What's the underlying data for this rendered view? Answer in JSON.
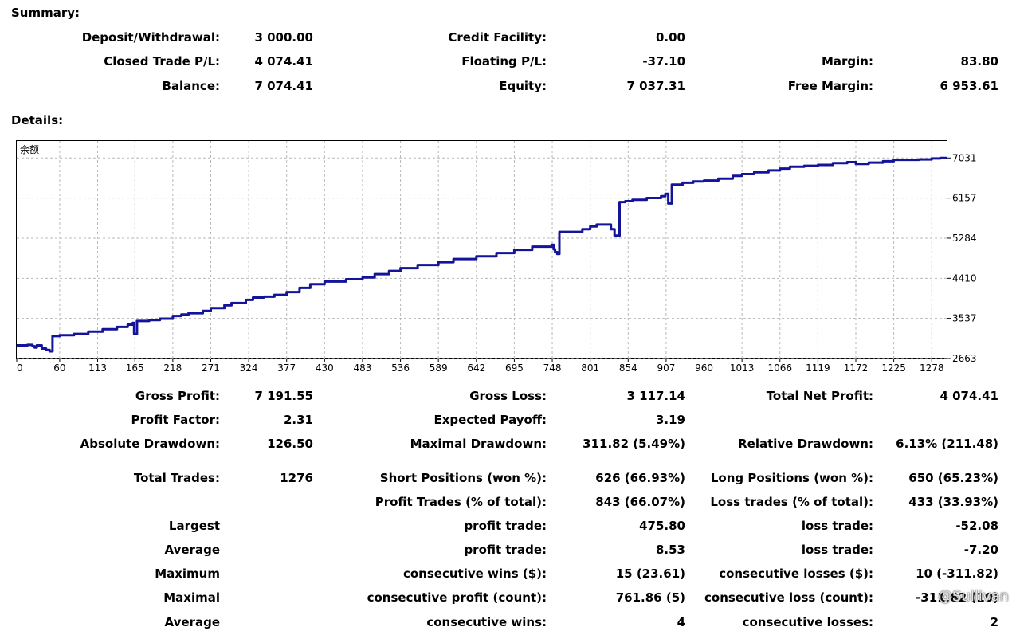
{
  "summary": {
    "title": "Summary:",
    "deposit_label": "Deposit/Withdrawal:",
    "deposit_value": "3 000.00",
    "credit_label": "Credit Facility:",
    "credit_value": "0.00",
    "closed_label": "Closed Trade P/L:",
    "closed_value": "4 074.41",
    "floating_label": "Floating P/L:",
    "floating_value": "-37.10",
    "margin_label": "Margin:",
    "margin_value": "83.80",
    "balance_label": "Balance:",
    "balance_value": "7 074.41",
    "equity_label": "Equity:",
    "equity_value": "7 037.31",
    "free_margin_label": "Free Margin:",
    "free_margin_value": "6 953.61"
  },
  "details": {
    "title": "Details:",
    "rows": [
      {
        "top": "",
        "c1l": "Gross Profit:",
        "c1v": "7 191.55",
        "c2l": "Gross Loss:",
        "c2v": "3 117.14",
        "c3l": "Total Net Profit:",
        "c3v": "4 074.41"
      },
      {
        "c1l": "Profit Factor:",
        "c1v": "2.31",
        "c2l": "Expected Payoff:",
        "c2v": "3.19",
        "c3l": "",
        "c3v": ""
      },
      {
        "c1l": "Absolute Drawdown:",
        "c1v": "126.50",
        "c2l": "Maximal Drawdown:",
        "c2v": "311.82 (5.49%)",
        "c3l": "Relative Drawdown:",
        "c3v": "6.13% (211.48)"
      },
      {
        "c1l": "Total Trades:",
        "c1v": "1276",
        "c2l": "Short Positions (won %):",
        "c2v": "626 (66.93%)",
        "c3l": "Long Positions (won %):",
        "c3v": "650 (65.23%)"
      },
      {
        "c1l": "",
        "c1v": "",
        "c2l": "Profit Trades (% of total):",
        "c2v": "843 (66.07%)",
        "c3l": "Loss trades (% of total):",
        "c3v": "433 (33.93%)"
      },
      {
        "c1l": "Largest",
        "c1v": "",
        "c2l": "profit trade:",
        "c2v": "475.80",
        "c3l": "loss trade:",
        "c3v": "-52.08"
      },
      {
        "c1l": "Average",
        "c1v": "",
        "c2l": "profit trade:",
        "c2v": "8.53",
        "c3l": "loss trade:",
        "c3v": "-7.20"
      },
      {
        "c1l": "Maximum",
        "c1v": "",
        "c2l": "consecutive wins ($):",
        "c2v": "15 (23.61)",
        "c3l": "consecutive losses ($):",
        "c3v": "10 (-311.82)"
      },
      {
        "c1l": "Maximal",
        "c1v": "",
        "c2l": "consecutive profit (count):",
        "c2v": "761.86 (5)",
        "c3l": "consecutive loss (count):",
        "c3v": "-311.82 (10)"
      },
      {
        "c1l": "Average",
        "c1v": "",
        "c2l": "consecutive wins:",
        "c2v": "4",
        "c3l": "consecutive losses:",
        "c3v": "2"
      }
    ]
  },
  "watermark": "@Sullivan",
  "chart_data": {
    "type": "line",
    "title": "",
    "corner_label": "余额",
    "xlabel": "",
    "ylabel": "",
    "xlim": [
      0,
      1300
    ],
    "ylim": [
      2663,
      7400
    ],
    "x_ticks": [
      0,
      60,
      113,
      165,
      218,
      271,
      324,
      377,
      430,
      483,
      536,
      589,
      642,
      695,
      748,
      801,
      854,
      907,
      960,
      1013,
      1066,
      1119,
      1172,
      1225,
      1278
    ],
    "y_ticks": [
      2663,
      3537,
      4410,
      5284,
      6157,
      7031
    ],
    "grid": true,
    "line_color": "#14149a",
    "series": [
      {
        "name": "",
        "x": [
          0,
          15,
          22,
          25,
          28,
          35,
          41,
          46,
          50,
          60,
          80,
          100,
          120,
          140,
          155,
          162,
          164,
          168,
          185,
          200,
          218,
          230,
          240,
          260,
          271,
          290,
          300,
          320,
          330,
          345,
          360,
          377,
          395,
          410,
          430,
          460,
          483,
          500,
          520,
          536,
          560,
          589,
          610,
          642,
          670,
          695,
          720,
          747,
          750,
          752,
          755,
          758,
          770,
          790,
          801,
          810,
          820,
          830,
          835,
          842,
          850,
          860,
          880,
          900,
          906,
          910,
          915,
          930,
          945,
          960,
          980,
          1000,
          1013,
          1030,
          1050,
          1066,
          1080,
          1100,
          1119,
          1140,
          1160,
          1172,
          1190,
          1210,
          1225,
          1240,
          1260,
          1278,
          1290,
          1300
        ],
        "y": [
          2950,
          2960,
          2930,
          2900,
          2950,
          2880,
          2850,
          2820,
          3150,
          3170,
          3200,
          3250,
          3300,
          3350,
          3400,
          3440,
          3200,
          3480,
          3500,
          3530,
          3590,
          3620,
          3650,
          3700,
          3760,
          3820,
          3870,
          3940,
          3990,
          4010,
          4050,
          4110,
          4200,
          4280,
          4340,
          4390,
          4430,
          4500,
          4570,
          4630,
          4700,
          4760,
          4830,
          4890,
          4960,
          5030,
          5100,
          5140,
          5040,
          4980,
          4940,
          5420,
          5420,
          5480,
          5540,
          5580,
          5580,
          5480,
          5340,
          6070,
          6090,
          6120,
          6160,
          6200,
          6250,
          6040,
          6450,
          6490,
          6520,
          6540,
          6580,
          6640,
          6680,
          6720,
          6760,
          6800,
          6840,
          6860,
          6880,
          6920,
          6940,
          6900,
          6930,
          6960,
          6990,
          6990,
          7000,
          7020,
          7030,
          7031
        ]
      }
    ]
  }
}
